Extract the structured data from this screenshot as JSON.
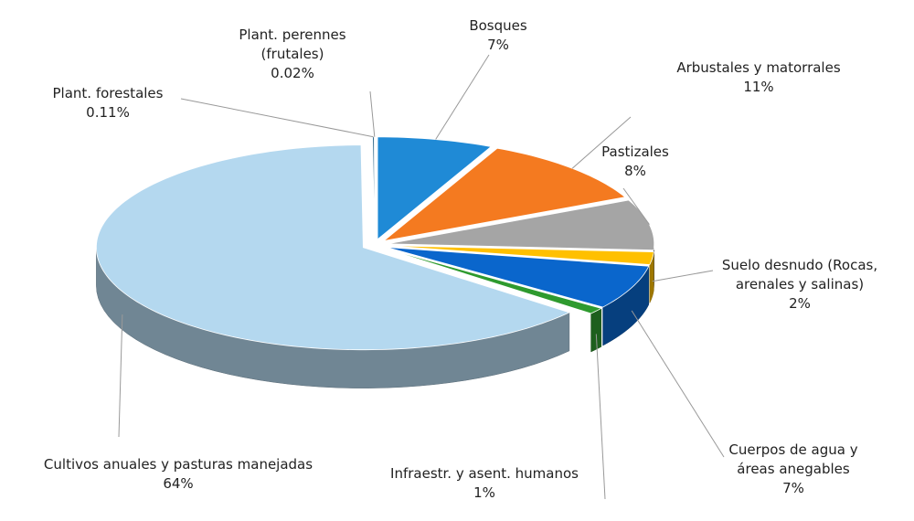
{
  "chart_data": {
    "type": "pie",
    "categories": [
      "Bosques",
      "Arbustales y matorrales",
      "Pastizales",
      "Suelo desnudo (Rocas, arenales y salinas)",
      "Cuerpos de agua y áreas anegables",
      "Infraestr. y asent. humanos",
      "Cultivos anuales y pasturas manejadas",
      "Plant. forestales",
      "Plant. perennes (frutales)"
    ],
    "values": [
      7,
      11,
      8,
      2,
      7,
      1,
      64,
      0.11,
      0.02
    ],
    "value_labels": [
      "7%",
      "11%",
      "8%",
      "2%",
      "7%",
      "1%",
      "64%",
      "0.11%",
      "0.02%"
    ],
    "colors": [
      "#1f8ad6",
      "#f47a20",
      "#a5a5a5",
      "#ffc000",
      "#0a66cc",
      "#2e9a2e",
      "#b4d8ef",
      "#3a6f8f",
      "#d9d9d9"
    ]
  }
}
